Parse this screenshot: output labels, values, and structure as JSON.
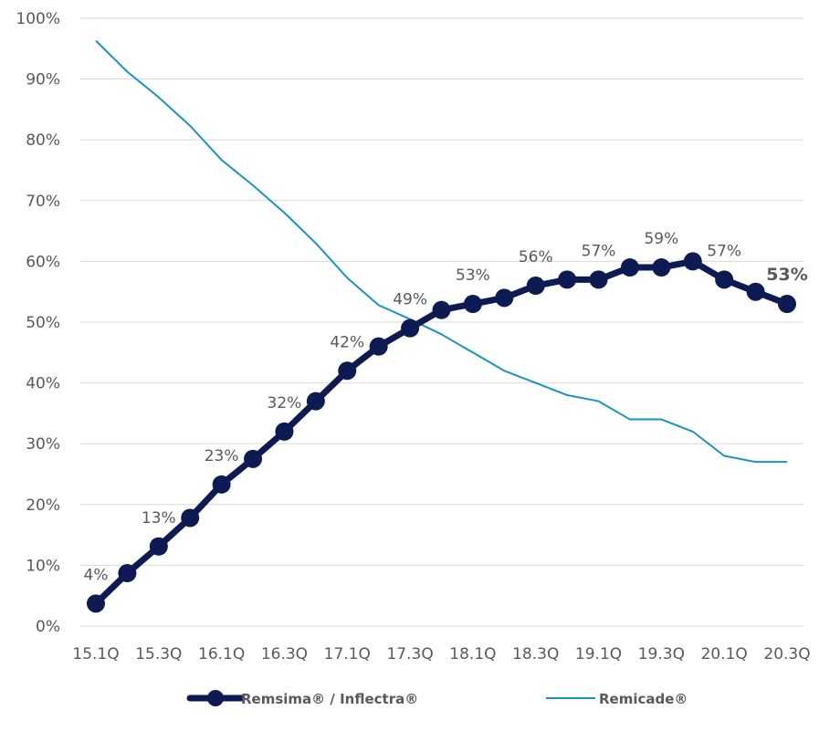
{
  "chart_data": {
    "type": "line",
    "title": "",
    "xlabel": "",
    "ylabel": "",
    "x": [
      "15.1Q",
      "15.2Q",
      "15.3Q",
      "15.4Q",
      "16.1Q",
      "16.2Q",
      "16.3Q",
      "16.4Q",
      "17.1Q",
      "17.2Q",
      "17.3Q",
      "17.4Q",
      "18.1Q",
      "18.2Q",
      "18.3Q",
      "18.4Q",
      "19.1Q",
      "19.2Q",
      "19.3Q",
      "19.4Q",
      "20.1Q",
      "20.2Q",
      "20.3Q"
    ],
    "x_tick_labels": [
      "15.1Q",
      "15.3Q",
      "16.1Q",
      "16.3Q",
      "17.1Q",
      "17.3Q",
      "18.1Q",
      "18.3Q",
      "19.1Q",
      "19.3Q",
      "20.1Q",
      "20.3Q"
    ],
    "y_tick_labels": [
      "0%",
      "10%",
      "20%",
      "30%",
      "40%",
      "50%",
      "60%",
      "70%",
      "80%",
      "90%",
      "100%"
    ],
    "ylim": [
      0,
      100
    ],
    "grid": "horizontal",
    "legend_position": "bottom",
    "series": [
      {
        "name": "Remsima® / Inflectra®",
        "color": "#0d1b52",
        "marker": "circle",
        "values": [
          3.7,
          8.7,
          13.1,
          17.8,
          23.3,
          27.5,
          32.0,
          37.0,
          42.0,
          46.0,
          49.0,
          52.0,
          53.0,
          54.0,
          56.0,
          57.0,
          57.0,
          59.0,
          59.0,
          60.0,
          57.0,
          55.0,
          53.0
        ]
      },
      {
        "name": "Remicade®",
        "color": "#1a93c0",
        "marker": "none",
        "values": [
          96.3,
          91.2,
          87.0,
          82.3,
          76.7,
          72.5,
          68.0,
          63.0,
          57.3,
          52.8,
          50.5,
          48.0,
          45.0,
          42.0,
          40.0,
          38.0,
          37.0,
          34.0,
          34.0,
          32.0,
          28.0,
          27.0,
          27.0
        ]
      }
    ],
    "data_labels": [
      {
        "index": 0,
        "text": "4%",
        "bold": false
      },
      {
        "index": 2,
        "text": "13%",
        "bold": false
      },
      {
        "index": 4,
        "text": "23%",
        "bold": false
      },
      {
        "index": 6,
        "text": "32%",
        "bold": false
      },
      {
        "index": 8,
        "text": "42%",
        "bold": false
      },
      {
        "index": 10,
        "text": "49%",
        "bold": false
      },
      {
        "index": 12,
        "text": "53%",
        "bold": false
      },
      {
        "index": 14,
        "text": "56%",
        "bold": false
      },
      {
        "index": 16,
        "text": "57%",
        "bold": false
      },
      {
        "index": 18,
        "text": "59%",
        "bold": false
      },
      {
        "index": 20,
        "text": "57%",
        "bold": false
      },
      {
        "index": 22,
        "text": "53%",
        "bold": true
      }
    ]
  }
}
